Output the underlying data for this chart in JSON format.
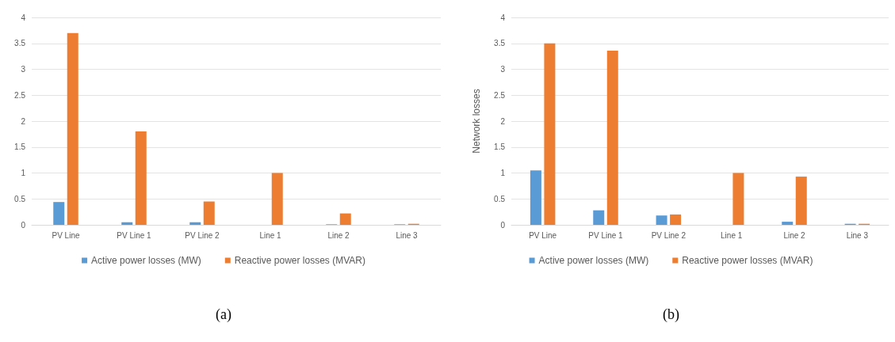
{
  "chart_data": [
    {
      "type": "bar",
      "categories": [
        "PV Line",
        "PV Line 1",
        "PV Line 2",
        "Line 1",
        "Line 2",
        "Line 3"
      ],
      "series": [
        {
          "name": "Active power losses (MW)",
          "color": "#5b9bd5",
          "values": [
            0.44,
            0.05,
            0.05,
            0,
            0.01,
            0.01
          ]
        },
        {
          "name": "Reactive power losses (MVAR)",
          "color": "#ed7d31",
          "values": [
            3.7,
            1.8,
            0.45,
            1.0,
            0.22,
            0.02
          ]
        }
      ],
      "ylim": [
        0,
        4
      ],
      "yticks": [
        0,
        0.5,
        1,
        1.5,
        2,
        2.5,
        3,
        3.5,
        4
      ],
      "grid": "y",
      "legend": "bottom",
      "annotations": [
        "(a)"
      ]
    },
    {
      "type": "bar",
      "categories": [
        "PV Line",
        "PV Line 1",
        "PV Line 2",
        "Line 1",
        "Line 2",
        "Line 3"
      ],
      "ylabel": "Network losses",
      "series": [
        {
          "name": "Active power losses (MW)",
          "color": "#5b9bd5",
          "values": [
            1.05,
            0.28,
            0.18,
            0,
            0.06,
            0.02
          ]
        },
        {
          "name": "Reactive power losses (MVAR)",
          "color": "#ed7d31",
          "values": [
            3.5,
            3.36,
            0.2,
            1.0,
            0.93,
            0.02
          ]
        }
      ],
      "ylim": [
        0,
        4
      ],
      "yticks": [
        0,
        0.5,
        1,
        1.5,
        2,
        2.5,
        3,
        3.5,
        4
      ],
      "grid": "y",
      "legend": "bottom",
      "annotations": [
        "(b)"
      ]
    }
  ]
}
